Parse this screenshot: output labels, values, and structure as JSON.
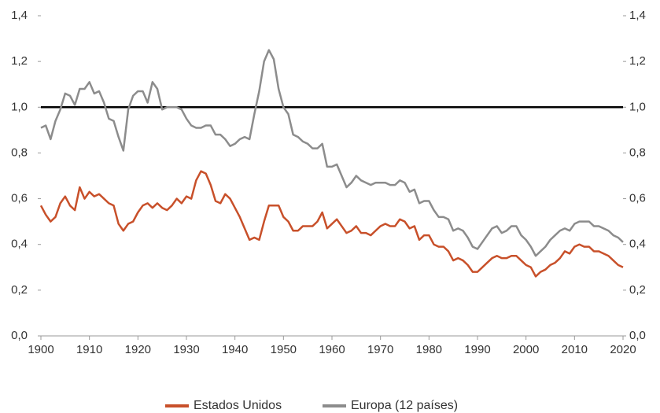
{
  "chart_data": {
    "type": "line",
    "x": [
      1900,
      1901,
      1902,
      1903,
      1904,
      1905,
      1906,
      1907,
      1908,
      1909,
      1910,
      1911,
      1912,
      1913,
      1914,
      1915,
      1916,
      1917,
      1918,
      1919,
      1920,
      1921,
      1922,
      1923,
      1924,
      1925,
      1926,
      1927,
      1928,
      1929,
      1930,
      1931,
      1932,
      1933,
      1934,
      1935,
      1936,
      1937,
      1938,
      1939,
      1940,
      1941,
      1942,
      1943,
      1944,
      1945,
      1946,
      1947,
      1948,
      1949,
      1950,
      1951,
      1952,
      1953,
      1954,
      1955,
      1956,
      1957,
      1958,
      1959,
      1960,
      1961,
      1962,
      1963,
      1964,
      1965,
      1966,
      1967,
      1968,
      1969,
      1970,
      1971,
      1972,
      1973,
      1974,
      1975,
      1976,
      1977,
      1978,
      1979,
      1980,
      1981,
      1982,
      1983,
      1984,
      1985,
      1986,
      1987,
      1988,
      1989,
      1990,
      1991,
      1992,
      1993,
      1994,
      1995,
      1996,
      1997,
      1998,
      1999,
      2000,
      2001,
      2002,
      2003,
      2004,
      2005,
      2006,
      2007,
      2008,
      2009,
      2010,
      2011,
      2012,
      2013,
      2014,
      2015,
      2016,
      2017,
      2018,
      2019,
      2020
    ],
    "series": [
      {
        "name": "Estados Unidos",
        "color": "#c8502a",
        "values": [
          0.57,
          0.53,
          0.5,
          0.52,
          0.58,
          0.61,
          0.57,
          0.55,
          0.65,
          0.6,
          0.63,
          0.61,
          0.62,
          0.6,
          0.58,
          0.57,
          0.49,
          0.46,
          0.49,
          0.5,
          0.54,
          0.57,
          0.58,
          0.56,
          0.58,
          0.56,
          0.55,
          0.57,
          0.6,
          0.58,
          0.61,
          0.6,
          0.68,
          0.72,
          0.71,
          0.66,
          0.59,
          0.58,
          0.62,
          0.6,
          0.56,
          0.52,
          0.47,
          0.42,
          0.43,
          0.42,
          0.5,
          0.57,
          0.57,
          0.57,
          0.52,
          0.5,
          0.46,
          0.46,
          0.48,
          0.48,
          0.48,
          0.5,
          0.54,
          0.47,
          0.49,
          0.51,
          0.48,
          0.45,
          0.46,
          0.48,
          0.45,
          0.45,
          0.44,
          0.46,
          0.48,
          0.49,
          0.48,
          0.48,
          0.51,
          0.5,
          0.47,
          0.48,
          0.42,
          0.44,
          0.44,
          0.4,
          0.39,
          0.39,
          0.37,
          0.33,
          0.34,
          0.33,
          0.31,
          0.28,
          0.28,
          0.3,
          0.32,
          0.34,
          0.35,
          0.34,
          0.34,
          0.35,
          0.35,
          0.33,
          0.31,
          0.3,
          0.26,
          0.28,
          0.29,
          0.31,
          0.32,
          0.34,
          0.37,
          0.36,
          0.39,
          0.4,
          0.39,
          0.39,
          0.37,
          0.37,
          0.36,
          0.35,
          0.33,
          0.31,
          0.3
        ]
      },
      {
        "name": "Europa (12 países)",
        "color": "#8c8c8c",
        "values": [
          0.91,
          0.92,
          0.86,
          0.94,
          0.99,
          1.06,
          1.05,
          1.01,
          1.08,
          1.08,
          1.11,
          1.06,
          1.07,
          1.02,
          0.95,
          0.94,
          0.87,
          0.81,
          0.99,
          1.05,
          1.07,
          1.07,
          1.02,
          1.11,
          1.08,
          0.99,
          1.0,
          1.0,
          1.0,
          0.99,
          0.95,
          0.92,
          0.91,
          0.91,
          0.92,
          0.92,
          0.88,
          0.88,
          0.86,
          0.83,
          0.84,
          0.86,
          0.87,
          0.86,
          0.97,
          1.07,
          1.2,
          1.25,
          1.21,
          1.08,
          1.0,
          0.97,
          0.88,
          0.87,
          0.85,
          0.84,
          0.82,
          0.82,
          0.84,
          0.74,
          0.74,
          0.75,
          0.7,
          0.65,
          0.67,
          0.7,
          0.68,
          0.67,
          0.66,
          0.67,
          0.67,
          0.67,
          0.66,
          0.66,
          0.68,
          0.67,
          0.63,
          0.64,
          0.58,
          0.59,
          0.59,
          0.55,
          0.52,
          0.52,
          0.51,
          0.46,
          0.47,
          0.46,
          0.43,
          0.39,
          0.38,
          0.41,
          0.44,
          0.47,
          0.48,
          0.45,
          0.46,
          0.48,
          0.48,
          0.44,
          0.42,
          0.39,
          0.35,
          0.37,
          0.39,
          0.42,
          0.44,
          0.46,
          0.47,
          0.46,
          0.49,
          0.5,
          0.5,
          0.5,
          0.48,
          0.48,
          0.47,
          0.46,
          0.44,
          0.43,
          0.41
        ]
      }
    ],
    "xlim": [
      1900,
      2020
    ],
    "xticks": [
      1900,
      1910,
      1920,
      1930,
      1940,
      1950,
      1960,
      1970,
      1980,
      1990,
      2000,
      2010,
      2020
    ],
    "ylim": [
      0,
      1.4
    ],
    "yticks": [
      {
        "value": 0,
        "label": "0,0"
      },
      {
        "value": 0.2,
        "label": "0,2"
      },
      {
        "value": 0.4,
        "label": "0,4"
      },
      {
        "value": 0.6,
        "label": "0,6"
      },
      {
        "value": 0.8,
        "label": "0,8"
      },
      {
        "value": 1,
        "label": "1,0"
      },
      {
        "value": 1.2,
        "label": "1,2"
      },
      {
        "value": 1.4,
        "label": "1,4"
      }
    ],
    "y2lim": [
      0,
      1.4
    ],
    "y2ticks": [
      {
        "value": 0,
        "label": "0,0"
      },
      {
        "value": 0.2,
        "label": "0,2"
      },
      {
        "value": 0.4,
        "label": "0,4"
      },
      {
        "value": 0.6,
        "label": "0,6"
      },
      {
        "value": 0.8,
        "label": "0,8"
      },
      {
        "value": 1,
        "label": "1,0"
      },
      {
        "value": 1.2,
        "label": "1,2"
      },
      {
        "value": 1.4,
        "label": "1,4"
      }
    ],
    "hline": 1,
    "legend": "bottom"
  }
}
